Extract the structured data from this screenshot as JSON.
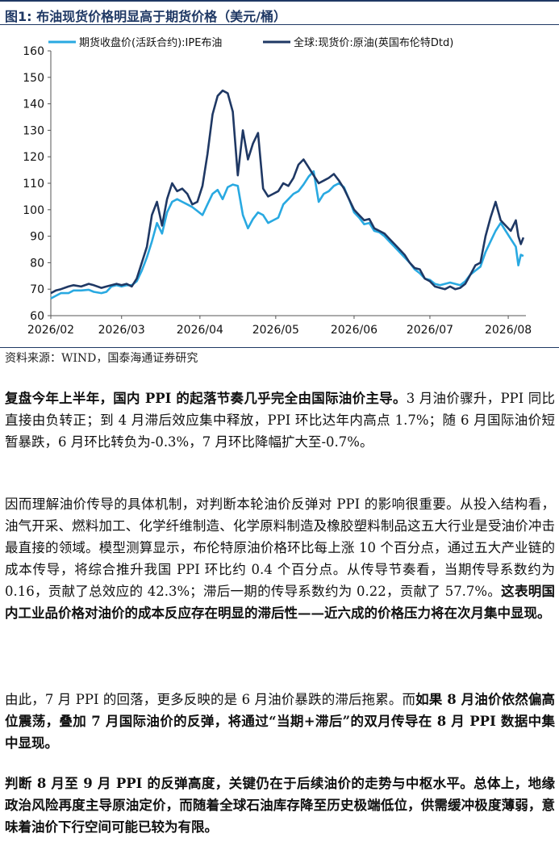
{
  "figure": {
    "title": "图1:  布油现货价格明显高于期货价格（美元/桶）",
    "source": "资料来源：WIND，国泰海通证券研究"
  },
  "chart_data": {
    "type": "line",
    "title": "",
    "xlabel": "",
    "ylabel": "",
    "ylim": [
      60,
      160
    ],
    "yticks": [
      60,
      70,
      80,
      90,
      100,
      110,
      120,
      130,
      140,
      150,
      160
    ],
    "xlim": [
      "2026-02-01",
      "2026-08-08"
    ],
    "xticks": [
      "2026/02",
      "2026/03",
      "2026/04",
      "2026/05",
      "2026/06",
      "2026/07",
      "2026/08"
    ],
    "legend_position": "top",
    "grid": false,
    "series": [
      {
        "name": "期货收盘价(活跃合约):IPE布油",
        "color": "#29a9e1",
        "points": [
          [
            "2026-02-01",
            66.5
          ],
          [
            "2026-02-03",
            67.5
          ],
          [
            "2026-02-05",
            68.5
          ],
          [
            "2026-02-08",
            68.5
          ],
          [
            "2026-02-10",
            69.5
          ],
          [
            "2026-02-13",
            69.5
          ],
          [
            "2026-02-16",
            69.8
          ],
          [
            "2026-02-18",
            69.0
          ],
          [
            "2026-02-21",
            68.5
          ],
          [
            "2026-02-23",
            69.0
          ],
          [
            "2026-02-25",
            71.0
          ],
          [
            "2026-02-27",
            71.5
          ],
          [
            "2026-03-01",
            71.0
          ],
          [
            "2026-03-03",
            71.5
          ],
          [
            "2026-03-05",
            71.5
          ],
          [
            "2026-03-07",
            73.0
          ],
          [
            "2026-03-09",
            77.0
          ],
          [
            "2026-03-11",
            82.0
          ],
          [
            "2026-03-13",
            88.0
          ],
          [
            "2026-03-15",
            95.0
          ],
          [
            "2026-03-17",
            91.0
          ],
          [
            "2026-03-19",
            99.0
          ],
          [
            "2026-03-21",
            103.0
          ],
          [
            "2026-03-23",
            104.0
          ],
          [
            "2026-03-25",
            103.0
          ],
          [
            "2026-03-27",
            102.0
          ],
          [
            "2026-03-29",
            101.0
          ],
          [
            "2026-03-31",
            99.5
          ],
          [
            "2026-04-02",
            98.0
          ],
          [
            "2026-04-04",
            102.0
          ],
          [
            "2026-04-06",
            106.0
          ],
          [
            "2026-04-08",
            107.5
          ],
          [
            "2026-04-10",
            104.0
          ],
          [
            "2026-04-12",
            108.5
          ],
          [
            "2026-04-14",
            109.5
          ],
          [
            "2026-04-16",
            109.0
          ],
          [
            "2026-04-18",
            98.0
          ],
          [
            "2026-04-20",
            93.0
          ],
          [
            "2026-04-22",
            96.5
          ],
          [
            "2026-04-24",
            99.0
          ],
          [
            "2026-04-26",
            98.0
          ],
          [
            "2026-04-28",
            95.0
          ],
          [
            "2026-04-30",
            96.0
          ],
          [
            "2026-05-02",
            97.0
          ],
          [
            "2026-05-04",
            102.0
          ],
          [
            "2026-05-06",
            104.0
          ],
          [
            "2026-05-08",
            106.0
          ],
          [
            "2026-05-10",
            107.0
          ],
          [
            "2026-05-12",
            109.5
          ],
          [
            "2026-05-14",
            112.5
          ],
          [
            "2026-05-16",
            114.5
          ],
          [
            "2026-05-18",
            103.0
          ],
          [
            "2026-05-20",
            106.0
          ],
          [
            "2026-05-22",
            107.0
          ],
          [
            "2026-05-24",
            109.0
          ],
          [
            "2026-05-26",
            110.0
          ],
          [
            "2026-05-28",
            108.5
          ],
          [
            "2026-05-30",
            104.0
          ],
          [
            "2026-06-01",
            99.0
          ],
          [
            "2026-06-03",
            97.0
          ],
          [
            "2026-06-05",
            94.5
          ],
          [
            "2026-06-07",
            95.0
          ],
          [
            "2026-06-09",
            92.0
          ],
          [
            "2026-06-11",
            91.5
          ],
          [
            "2026-06-13",
            90.0
          ],
          [
            "2026-06-15",
            88.0
          ],
          [
            "2026-06-17",
            86.0
          ],
          [
            "2026-06-19",
            84.0
          ],
          [
            "2026-06-21",
            82.0
          ],
          [
            "2026-06-23",
            80.0
          ],
          [
            "2026-06-25",
            77.5
          ],
          [
            "2026-06-27",
            76.0
          ],
          [
            "2026-06-29",
            74.0
          ],
          [
            "2026-07-01",
            73.5
          ],
          [
            "2026-07-03",
            72.0
          ],
          [
            "2026-07-05",
            71.5
          ],
          [
            "2026-07-07",
            72.0
          ],
          [
            "2026-07-09",
            72.5
          ],
          [
            "2026-07-11",
            72.0
          ],
          [
            "2026-07-13",
            71.5
          ],
          [
            "2026-07-15",
            73.0
          ],
          [
            "2026-07-17",
            75.5
          ],
          [
            "2026-07-19",
            77.0
          ],
          [
            "2026-07-21",
            78.5
          ],
          [
            "2026-07-23",
            84.0
          ],
          [
            "2026-07-25",
            88.0
          ],
          [
            "2026-07-27",
            92.0
          ],
          [
            "2026-07-29",
            95.0
          ],
          [
            "2026-07-31",
            92.0
          ],
          [
            "2026-08-02",
            89.0
          ],
          [
            "2026-08-04",
            86.0
          ],
          [
            "2026-08-05",
            79.0
          ],
          [
            "2026-08-06",
            83.0
          ],
          [
            "2026-08-07",
            82.5
          ]
        ]
      },
      {
        "name": "全球:现货价:原油(英国布伦特Dtd)",
        "color": "#1f3864",
        "points": [
          [
            "2026-02-01",
            68.5
          ],
          [
            "2026-02-03",
            69.5
          ],
          [
            "2026-02-05",
            70.0
          ],
          [
            "2026-02-08",
            71.0
          ],
          [
            "2026-02-10",
            71.5
          ],
          [
            "2026-02-13",
            71.0
          ],
          [
            "2026-02-16",
            72.0
          ],
          [
            "2026-02-18",
            71.5
          ],
          [
            "2026-02-21",
            70.5
          ],
          [
            "2026-02-23",
            71.0
          ],
          [
            "2026-02-25",
            71.5
          ],
          [
            "2026-02-27",
            72.0
          ],
          [
            "2026-03-01",
            71.5
          ],
          [
            "2026-03-03",
            72.0
          ],
          [
            "2026-03-05",
            71.0
          ],
          [
            "2026-03-07",
            74.0
          ],
          [
            "2026-03-09",
            80.0
          ],
          [
            "2026-03-11",
            86.0
          ],
          [
            "2026-03-13",
            98.0
          ],
          [
            "2026-03-15",
            103.0
          ],
          [
            "2026-03-17",
            94.0
          ],
          [
            "2026-03-19",
            104.0
          ],
          [
            "2026-03-21",
            110.0
          ],
          [
            "2026-03-23",
            107.0
          ],
          [
            "2026-03-25",
            108.0
          ],
          [
            "2026-03-27",
            106.0
          ],
          [
            "2026-03-29",
            102.0
          ],
          [
            "2026-03-31",
            103.0
          ],
          [
            "2026-04-02",
            109.0
          ],
          [
            "2026-04-04",
            121.0
          ],
          [
            "2026-04-06",
            136.0
          ],
          [
            "2026-04-08",
            143.0
          ],
          [
            "2026-04-10",
            145.0
          ],
          [
            "2026-04-12",
            144.0
          ],
          [
            "2026-04-14",
            137.0
          ],
          [
            "2026-04-16",
            113.0
          ],
          [
            "2026-04-18",
            130.0
          ],
          [
            "2026-04-20",
            119.0
          ],
          [
            "2026-04-22",
            125.0
          ],
          [
            "2026-04-24",
            129.0
          ],
          [
            "2026-04-26",
            108.0
          ],
          [
            "2026-04-28",
            105.0
          ],
          [
            "2026-04-30",
            106.0
          ],
          [
            "2026-05-02",
            107.0
          ],
          [
            "2026-05-04",
            110.0
          ],
          [
            "2026-05-06",
            109.0
          ],
          [
            "2026-05-08",
            112.0
          ],
          [
            "2026-05-10",
            117.0
          ],
          [
            "2026-05-12",
            119.0
          ],
          [
            "2026-05-14",
            116.0
          ],
          [
            "2026-05-16",
            113.0
          ],
          [
            "2026-05-18",
            110.0
          ],
          [
            "2026-05-20",
            111.0
          ],
          [
            "2026-05-22",
            112.0
          ],
          [
            "2026-05-24",
            113.5
          ],
          [
            "2026-05-26",
            111.0
          ],
          [
            "2026-05-28",
            108.0
          ],
          [
            "2026-05-30",
            104.0
          ],
          [
            "2026-06-01",
            100.0
          ],
          [
            "2026-06-03",
            98.0
          ],
          [
            "2026-06-05",
            96.0
          ],
          [
            "2026-06-07",
            96.5
          ],
          [
            "2026-06-09",
            93.0
          ],
          [
            "2026-06-11",
            92.0
          ],
          [
            "2026-06-13",
            91.0
          ],
          [
            "2026-06-15",
            89.0
          ],
          [
            "2026-06-17",
            87.0
          ],
          [
            "2026-06-19",
            85.0
          ],
          [
            "2026-06-21",
            83.0
          ],
          [
            "2026-06-23",
            80.0
          ],
          [
            "2026-06-25",
            78.0
          ],
          [
            "2026-06-27",
            77.5
          ],
          [
            "2026-06-29",
            74.0
          ],
          [
            "2026-07-01",
            73.0
          ],
          [
            "2026-07-03",
            71.0
          ],
          [
            "2026-07-05",
            70.5
          ],
          [
            "2026-07-07",
            70.0
          ],
          [
            "2026-07-09",
            71.0
          ],
          [
            "2026-07-11",
            70.0
          ],
          [
            "2026-07-13",
            70.5
          ],
          [
            "2026-07-15",
            72.0
          ],
          [
            "2026-07-17",
            75.5
          ],
          [
            "2026-07-19",
            79.0
          ],
          [
            "2026-07-21",
            80.0
          ],
          [
            "2026-07-23",
            90.0
          ],
          [
            "2026-07-25",
            97.0
          ],
          [
            "2026-07-27",
            103.0
          ],
          [
            "2026-07-29",
            96.0
          ],
          [
            "2026-07-31",
            94.0
          ],
          [
            "2026-08-02",
            92.0
          ],
          [
            "2026-08-04",
            96.0
          ],
          [
            "2026-08-05",
            90.0
          ],
          [
            "2026-08-06",
            87.0
          ],
          [
            "2026-08-07",
            89.5
          ]
        ]
      }
    ]
  },
  "paragraphs": [
    {
      "bold": "复盘今年上半年，国内 PPI 的起落节奏几乎完全由国际油价主导。",
      "text": "3 月油价骤升，PPI 同比直接由负转正；到 4 月滞后效应集中释放，PPI 环比达年内高点 1.7%；随 6 月国际油价短暂暴跌，6 月环比转负为-0.3%，7 月环比降幅扩大至-0.7%。"
    },
    {
      "text": "因而理解油价传导的具体机制，对判断本轮油价反弹对 PPI 的影响很重要。从投入结构看，油气开采、燃料加工、化学纤维制造、化学原料制造及橡胶塑料制品这五大行业是受油价冲击最直接的领域。模型测算显示，布伦特原油价格环比每上涨 10 个百分点，通过五大产业链的成本传导，将综合推升我国 PPI 环比约 0.4 个百分点。从传导节奏看，当期传导系数约为 0.16，贡献了总效应的 42.3%；滞后一期的传导系数约为 0.22，贡献了 57.7%。",
      "bold": "这表明国内工业品价格对油价的成本反应存在明显的滞后性——近六成的价格压力将在次月集中显现。"
    },
    {
      "text": "由此，7 月 PPI 的回落，更多反映的是 6 月油价暴跌的滞后拖累。而",
      "bold": "如果 8 月油价依然偏高位震荡，叠加 7 月国际油价的反弹，将通过“当期+滞后”的双月传导在 8 月 PPI 数据中集中显现。"
    },
    {
      "bold": "判断 8 月至 9 月 PPI 的反弹高度，关键仍在于后续油价的走势与中枢水平。总体上，地缘政治风险再度主导原油定价，而随着全球石油库存降至历史极端低位，供需缓冲极度薄弱，意味着油价下行空间可能已较为有限。"
    }
  ]
}
